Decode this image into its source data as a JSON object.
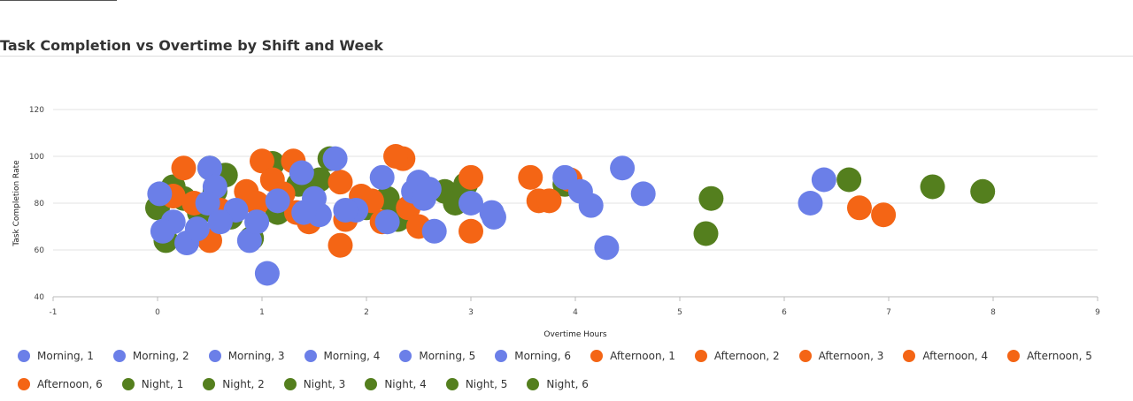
{
  "page": {
    "title": "Task Completion vs Overtime by Shift and Week"
  },
  "colors": {
    "morning": "#6b7fe8",
    "afternoon": "#f46515",
    "night": "#547f1e"
  },
  "chart_data": {
    "type": "scatter",
    "title": "Task Completion vs Overtime by Shift and Week",
    "xlabel": "Overtime Hours",
    "ylabel": "Task Completion Rate",
    "xlim": [
      -1,
      9
    ],
    "ylim": [
      40,
      120
    ],
    "xticks": [
      "-1",
      "0",
      "1",
      "2",
      "3",
      "4",
      "5",
      "6",
      "7",
      "8",
      "9"
    ],
    "yticks": [
      "40",
      "60",
      "80",
      "100",
      "120"
    ],
    "grid": "horizontal",
    "legend_position": "bottom",
    "series": [
      {
        "name": "Night, 1",
        "color": "#547f1e",
        "points": [
          [
            0,
            78
          ],
          [
            0.08,
            64
          ],
          [
            0.5,
            95
          ],
          [
            0.9,
            65
          ],
          [
            1.15,
            76
          ]
        ]
      },
      {
        "name": "Night, 2",
        "color": "#547f1e",
        "points": [
          [
            0.15,
            87
          ],
          [
            0.65,
            92
          ],
          [
            1.65,
            99
          ],
          [
            2.3,
            73
          ]
        ]
      },
      {
        "name": "Night, 3",
        "color": "#547f1e",
        "points": [
          [
            0.25,
            82
          ],
          [
            1.1,
            97
          ],
          [
            2.0,
            78
          ],
          [
            2.75,
            85
          ]
        ]
      },
      {
        "name": "Night, 4",
        "color": "#547f1e",
        "points": [
          [
            0.4,
            76
          ],
          [
            1.35,
            88
          ],
          [
            3.9,
            88
          ],
          [
            5.3,
            82
          ],
          [
            6.62,
            90
          ]
        ]
      },
      {
        "name": "Night, 5",
        "color": "#547f1e",
        "points": [
          [
            0.7,
            74
          ],
          [
            1.55,
            90
          ],
          [
            2.85,
            80
          ],
          [
            5.25,
            67
          ],
          [
            7.42,
            87
          ]
        ]
      },
      {
        "name": "Night, 6",
        "color": "#547f1e",
        "points": [
          [
            0.55,
            85
          ],
          [
            2.2,
            82
          ],
          [
            2.95,
            88
          ],
          [
            7.9,
            85
          ]
        ]
      },
      {
        "name": "Afternoon, 1",
        "color": "#f46515",
        "points": [
          [
            0.25,
            95
          ],
          [
            1.0,
            98
          ],
          [
            1.75,
            89
          ],
          [
            2.35,
            99
          ],
          [
            3.57,
            91
          ]
        ]
      },
      {
        "name": "Afternoon, 2",
        "color": "#f46515",
        "points": [
          [
            0.15,
            83
          ],
          [
            0.85,
            85
          ],
          [
            1.45,
            72
          ],
          [
            2.15,
            72
          ],
          [
            3.65,
            81
          ]
        ]
      },
      {
        "name": "Afternoon, 3",
        "color": "#f46515",
        "points": [
          [
            0.5,
            64
          ],
          [
            1.1,
            90
          ],
          [
            1.8,
            73
          ],
          [
            2.4,
            78
          ],
          [
            3.75,
            81
          ]
        ]
      },
      {
        "name": "Afternoon, 4",
        "color": "#f46515",
        "points": [
          [
            0.35,
            80
          ],
          [
            1.3,
            98
          ],
          [
            1.95,
            83
          ],
          [
            2.5,
            70
          ],
          [
            3.95,
            90
          ]
        ]
      },
      {
        "name": "Afternoon, 5",
        "color": "#f46515",
        "points": [
          [
            0.6,
            77
          ],
          [
            1.2,
            84
          ],
          [
            1.75,
            62
          ],
          [
            2.28,
            100
          ],
          [
            3.0,
            91
          ],
          [
            6.72,
            78
          ]
        ]
      },
      {
        "name": "Afternoon, 6",
        "color": "#f46515",
        "points": [
          [
            0.95,
            80
          ],
          [
            1.33,
            76
          ],
          [
            2.05,
            81
          ],
          [
            3.0,
            68
          ],
          [
            6.95,
            75
          ]
        ]
      },
      {
        "name": "Morning, 1",
        "color": "#6b7fe8",
        "points": [
          [
            0.02,
            84
          ],
          [
            0.5,
            95
          ],
          [
            1.05,
            50
          ],
          [
            2.15,
            91
          ],
          [
            4.45,
            95
          ]
        ]
      },
      {
        "name": "Morning, 2",
        "color": "#6b7fe8",
        "points": [
          [
            0.15,
            72
          ],
          [
            0.55,
            87
          ],
          [
            1.15,
            81
          ],
          [
            1.7,
            99
          ],
          [
            2.45,
            85
          ],
          [
            4.3,
            61
          ]
        ]
      },
      {
        "name": "Morning, 3",
        "color": "#6b7fe8",
        "points": [
          [
            0.28,
            63
          ],
          [
            0.75,
            77
          ],
          [
            1.38,
            93
          ],
          [
            2.2,
            72
          ],
          [
            2.65,
            68
          ],
          [
            3.9,
            91
          ]
        ]
      },
      {
        "name": "Morning, 4",
        "color": "#6b7fe8",
        "points": [
          [
            0.05,
            68
          ],
          [
            0.48,
            80
          ],
          [
            0.88,
            64
          ],
          [
            1.55,
            75
          ],
          [
            2.5,
            89
          ],
          [
            4.15,
            79
          ],
          [
            6.25,
            80
          ]
        ]
      },
      {
        "name": "Morning, 5",
        "color": "#6b7fe8",
        "points": [
          [
            0.38,
            69
          ],
          [
            0.95,
            72
          ],
          [
            1.4,
            76
          ],
          [
            1.9,
            77
          ],
          [
            2.55,
            82
          ],
          [
            3.2,
            76
          ],
          [
            4.65,
            84
          ]
        ]
      },
      {
        "name": "Morning, 6",
        "color": "#6b7fe8",
        "points": [
          [
            0.6,
            72
          ],
          [
            1.5,
            82
          ],
          [
            1.8,
            77
          ],
          [
            2.6,
            86
          ],
          [
            3.0,
            80
          ],
          [
            4.05,
            85
          ],
          [
            6.38,
            90
          ],
          [
            3.22,
            74
          ]
        ]
      }
    ]
  },
  "legend": [
    {
      "label": "Morning, 1",
      "color": "#6b7fe8"
    },
    {
      "label": "Morning, 2",
      "color": "#6b7fe8"
    },
    {
      "label": "Morning, 3",
      "color": "#6b7fe8"
    },
    {
      "label": "Morning, 4",
      "color": "#6b7fe8"
    },
    {
      "label": "Morning, 5",
      "color": "#6b7fe8"
    },
    {
      "label": "Morning, 6",
      "color": "#6b7fe8"
    },
    {
      "label": "Afternoon, 1",
      "color": "#f46515"
    },
    {
      "label": "Afternoon, 2",
      "color": "#f46515"
    },
    {
      "label": "Afternoon, 3",
      "color": "#f46515"
    },
    {
      "label": "Afternoon, 4",
      "color": "#f46515"
    },
    {
      "label": "Afternoon, 5",
      "color": "#f46515"
    },
    {
      "label": "Afternoon, 6",
      "color": "#f46515"
    },
    {
      "label": "Night, 1",
      "color": "#547f1e"
    },
    {
      "label": "Night, 2",
      "color": "#547f1e"
    },
    {
      "label": "Night, 3",
      "color": "#547f1e"
    },
    {
      "label": "Night, 4",
      "color": "#547f1e"
    },
    {
      "label": "Night, 5",
      "color": "#547f1e"
    },
    {
      "label": "Night, 6",
      "color": "#547f1e"
    }
  ]
}
